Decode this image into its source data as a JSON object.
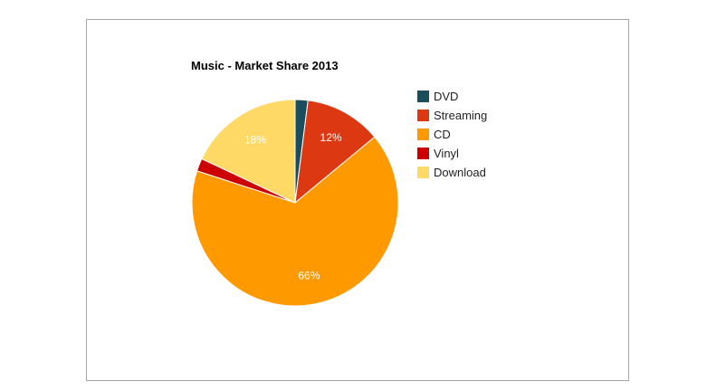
{
  "chart_data": {
    "type": "pie",
    "title": "Music - Market Share 2013",
    "slices": [
      {
        "label": "DVD",
        "value": 2,
        "color": "#1a4e5c",
        "data_label": ""
      },
      {
        "label": "Streaming",
        "value": 12,
        "color": "#dc3912",
        "data_label": "12%"
      },
      {
        "label": "CD",
        "value": 66,
        "color": "#ff9900",
        "data_label": "66%"
      },
      {
        "label": "Vinyl",
        "value": 2,
        "color": "#cc0000",
        "data_label": ""
      },
      {
        "label": "Download",
        "value": 18,
        "color": "#ffd966",
        "data_label": "18%"
      }
    ],
    "legend_position": "right"
  }
}
